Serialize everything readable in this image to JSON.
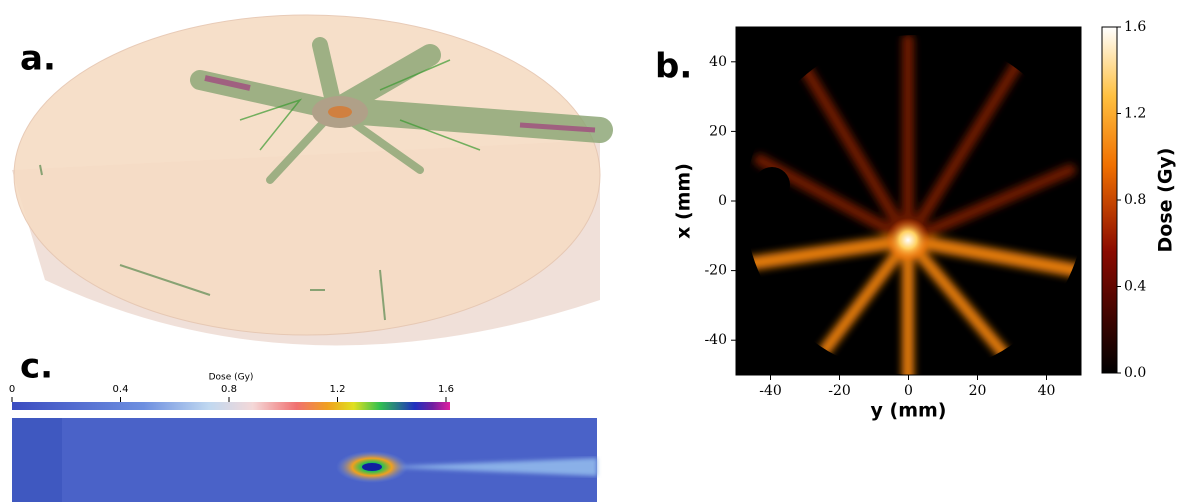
{
  "figure": {
    "panel_a_label": "a."
  },
  "chart_data": [
    {
      "type": "heatmap",
      "label": "b.",
      "xlabel": "y (mm)",
      "ylabel": "x (mm)",
      "xlim": [
        -50,
        50
      ],
      "ylim": [
        -50,
        50
      ],
      "xticks": [
        -40,
        -20,
        0,
        20,
        40
      ],
      "yticks": [
        -40,
        -20,
        0,
        20,
        40
      ],
      "colorbar": {
        "label": "Dose (Gy)",
        "lim": [
          0,
          1.6
        ],
        "ticks": [
          {
            "value": 0,
            "label": "0.0"
          },
          0.4,
          0.8,
          1.2,
          1.6
        ]
      }
    },
    {
      "type": "slice",
      "label": "c.",
      "colorbar": {
        "label": "Dose (Gy)",
        "lim": [
          0,
          1.6
        ],
        "ticks": [
          0,
          0.4,
          0.8,
          1.2,
          1.6
        ]
      }
    }
  ]
}
